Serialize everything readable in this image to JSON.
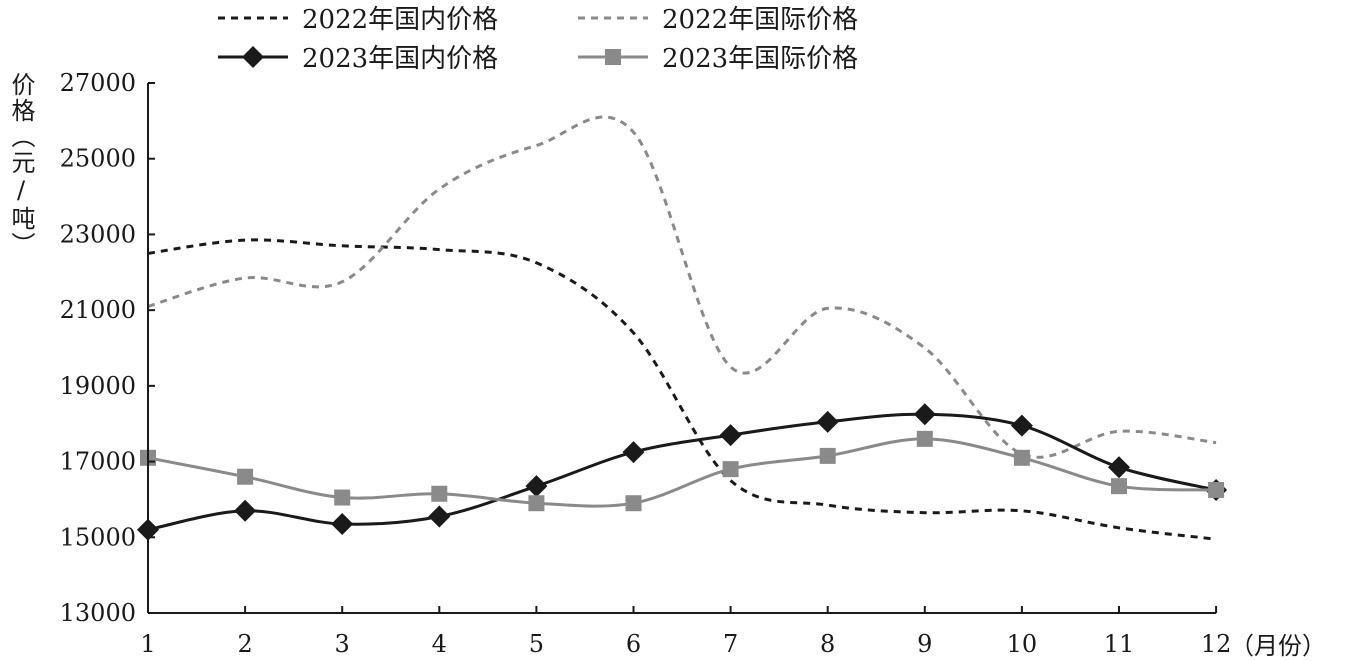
{
  "chart_data": {
    "type": "line",
    "ylabel": "价格（元/吨）",
    "xlabel": "（月份）",
    "x": [
      1,
      2,
      3,
      4,
      5,
      6,
      7,
      8,
      9,
      10,
      11,
      12
    ],
    "ylim": [
      13000,
      27000
    ],
    "yticks": [
      13000,
      15000,
      17000,
      19000,
      21000,
      23000,
      25000,
      27000
    ],
    "grid": false,
    "legend_position": "top",
    "series": [
      {
        "name": "2022年国内价格",
        "style": "dashed",
        "marker": "none",
        "color": "#1a1a1a",
        "values": [
          22500,
          22850,
          22700,
          22600,
          22250,
          20400,
          16500,
          15850,
          15650,
          15700,
          15250,
          14950
        ]
      },
      {
        "name": "2022年国际价格",
        "style": "dashed",
        "marker": "none",
        "color": "#8a8a8a",
        "values": [
          21100,
          21850,
          21750,
          24200,
          25350,
          25700,
          19500,
          21050,
          20000,
          17200,
          17800,
          17500
        ]
      },
      {
        "name": "2023年国内价格",
        "style": "solid",
        "marker": "diamond",
        "color": "#1a1a1a",
        "values": [
          15200,
          15700,
          15350,
          15550,
          16350,
          17250,
          17700,
          18050,
          18250,
          17950,
          16850,
          16250
        ]
      },
      {
        "name": "2023年国际价格",
        "style": "solid",
        "marker": "square",
        "color": "#8a8a8a",
        "values": [
          17100,
          16600,
          16050,
          16150,
          15900,
          15900,
          16800,
          17150,
          17600,
          17100,
          16350,
          16250
        ]
      }
    ]
  }
}
